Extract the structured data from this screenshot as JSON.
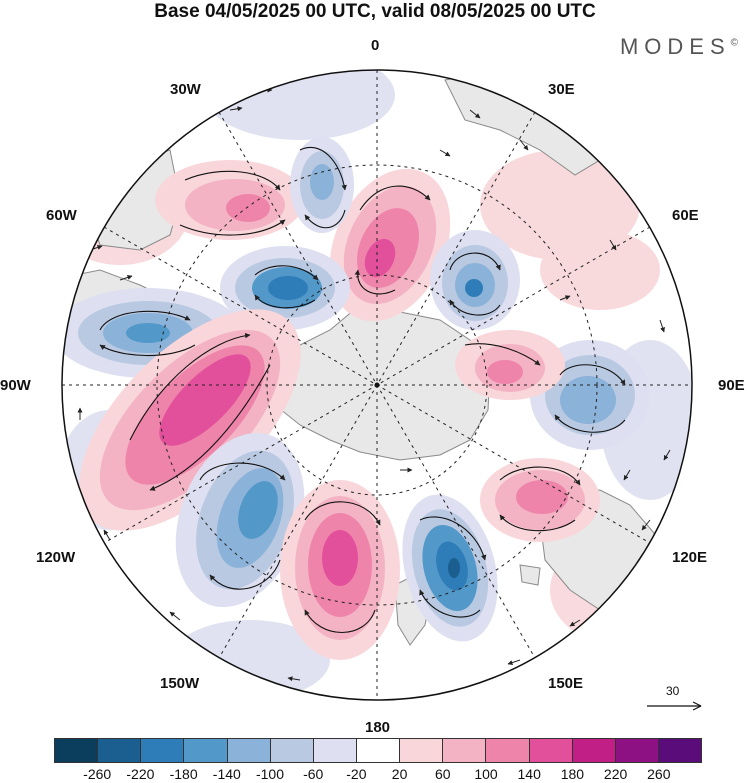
{
  "title": "Base 04/05/2025 00 UTC, valid 08/05/2025 00 UTC",
  "brand": "MODES",
  "brand_mark": "©",
  "longitude_labels": {
    "top": "0",
    "top_right_30": "30E",
    "top_left_30": "30W",
    "right_60": "60E",
    "left_60": "60W",
    "right": "90E",
    "left": "90W",
    "bottom_left_120": "120W",
    "bottom_right_120": "120E",
    "bottom_left_150": "150W",
    "bottom_right_150": "150E",
    "bottom": "180"
  },
  "reference_vector": {
    "value": "30"
  },
  "colorbar": {
    "colors": [
      "#0b3d5c",
      "#1a5f8f",
      "#2f7db8",
      "#5298c9",
      "#8bb2d8",
      "#b9c9e2",
      "#dedff0",
      "#ffffff",
      "#f8d6da",
      "#f4b3c4",
      "#ef84aa",
      "#e2509c",
      "#c21f86",
      "#8d1182",
      "#5a0c7a"
    ],
    "ticks": [
      "-260",
      "-220",
      "-180",
      "-140",
      "-100",
      "-60",
      "-20",
      "20",
      "60",
      "100",
      "140",
      "180",
      "220",
      "260"
    ]
  },
  "map_colors": {
    "land": "#e8e8e8",
    "land_outline": "#8a8a8a",
    "grid": "#222222"
  }
}
